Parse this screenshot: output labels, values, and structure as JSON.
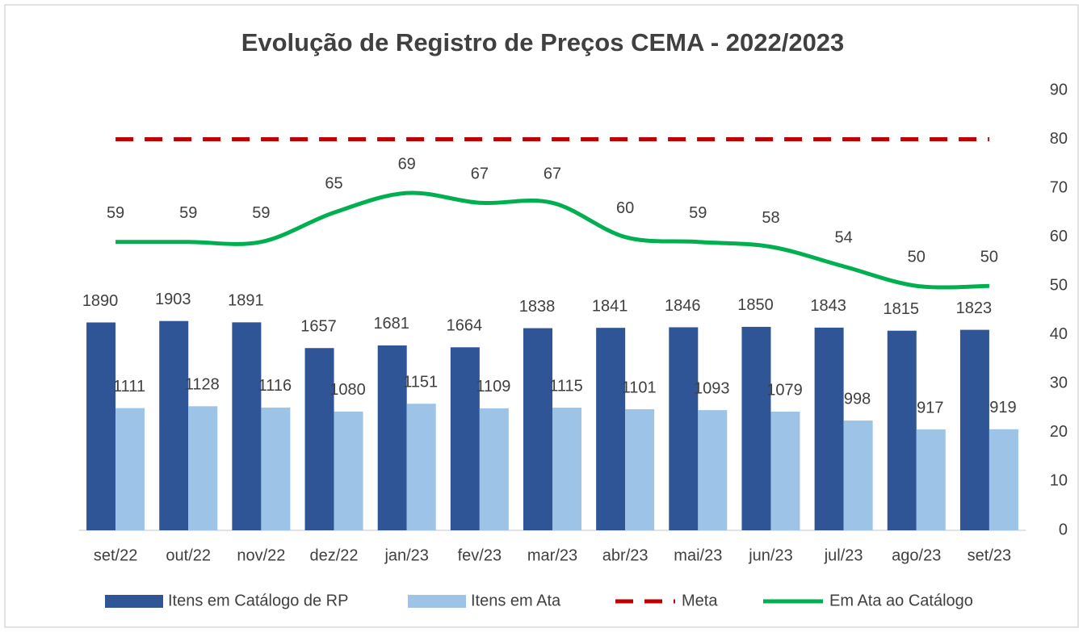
{
  "chart_data": {
    "type": "bar",
    "title": "Evolução de Registro de Preços CEMA - 2022/2023",
    "categories": [
      "set/22",
      "out/22",
      "nov/22",
      "dez/22",
      "jan/23",
      "fev/23",
      "mar/23",
      "abr/23",
      "mai/23",
      "jun/23",
      "jul/23",
      "ago/23",
      "set/23"
    ],
    "series": [
      {
        "name": "Itens em Catálogo de RP",
        "type": "bar",
        "color": "#2f5597",
        "values": [
          1890,
          1903,
          1891,
          1657,
          1681,
          1664,
          1838,
          1841,
          1846,
          1850,
          1843,
          1815,
          1823
        ]
      },
      {
        "name": "Itens em Ata",
        "type": "bar",
        "color": "#9dc3e6",
        "values": [
          1111,
          1128,
          1116,
          1080,
          1151,
          1109,
          1115,
          1101,
          1093,
          1079,
          998,
          917,
          919
        ]
      },
      {
        "name": "Meta",
        "type": "line",
        "dashed": true,
        "axis": "y2",
        "color": "#c00000",
        "values": [
          80,
          80,
          80,
          80,
          80,
          80,
          80,
          80,
          80,
          80,
          80,
          80,
          80
        ]
      },
      {
        "name": "Em Ata ao Catálogo",
        "type": "line",
        "smooth": true,
        "labels": true,
        "axis": "y2",
        "color": "#00b050",
        "values": [
          59,
          59,
          59,
          65,
          69,
          67,
          67,
          60,
          59,
          58,
          54,
          50,
          50
        ]
      }
    ],
    "ylim": [
      0,
      4000
    ],
    "y2lim": [
      0,
      90
    ],
    "y2ticks": [
      0,
      10,
      20,
      30,
      40,
      50,
      60,
      70,
      80,
      90
    ],
    "legend": "bottom"
  }
}
